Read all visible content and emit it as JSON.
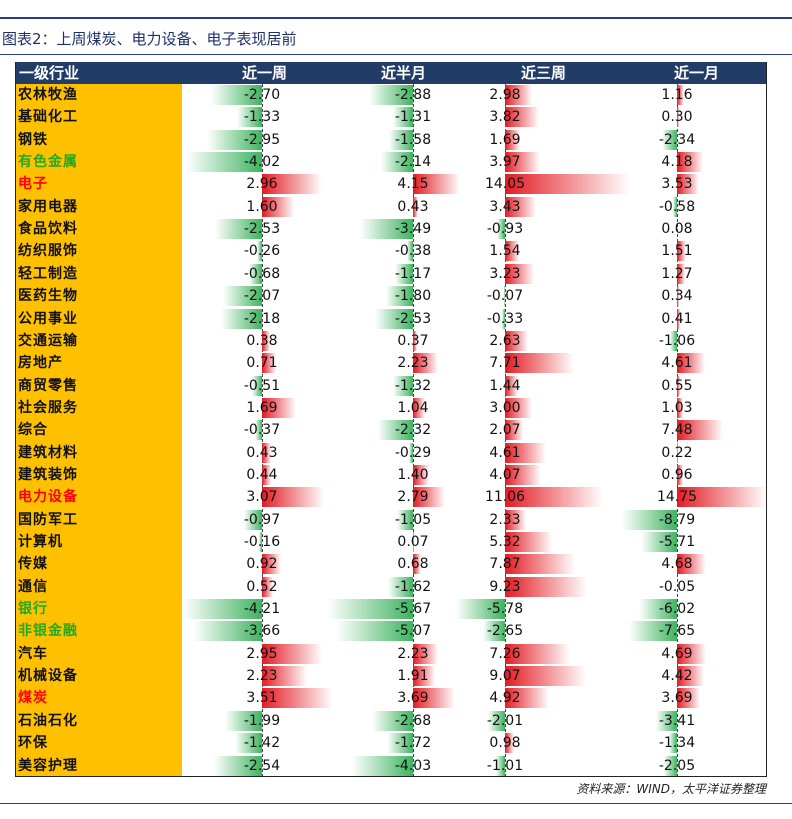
{
  "title": "图表2：上周煤炭、电力设备、电子表现居前",
  "source": "资料来源：WIND，太平洋证券整理",
  "colors": {
    "header": "#223c68",
    "industry_col": "#ffc000",
    "neg_bar": "#3db35f",
    "pos_bar": "#e31b23",
    "highlight_red": "#ff0000",
    "highlight_green": "#22aa22"
  },
  "chart_data": {
    "type": "table",
    "columns": [
      "一级行业",
      "近一周",
      "近半月",
      "近三周",
      "近一月"
    ],
    "rows": [
      {
        "name": "农林牧渔",
        "style": "normal",
        "values": [
          -2.7,
          -2.88,
          2.98,
          1.16
        ]
      },
      {
        "name": "基础化工",
        "style": "normal",
        "values": [
          -1.33,
          -1.31,
          3.82,
          0.3
        ]
      },
      {
        "name": "钢铁",
        "style": "normal",
        "values": [
          -2.95,
          -1.58,
          1.69,
          -2.34
        ]
      },
      {
        "name": "有色金属",
        "style": "green",
        "values": [
          -4.02,
          -2.14,
          3.97,
          4.18
        ]
      },
      {
        "name": "电子",
        "style": "red",
        "values": [
          2.96,
          4.15,
          14.05,
          3.53
        ]
      },
      {
        "name": "家用电器",
        "style": "normal",
        "values": [
          1.6,
          0.43,
          3.43,
          -0.58
        ]
      },
      {
        "name": "食品饮料",
        "style": "normal",
        "values": [
          -2.53,
          -3.49,
          -0.93,
          0.08
        ]
      },
      {
        "name": "纺织服饰",
        "style": "normal",
        "values": [
          -0.26,
          -0.38,
          1.54,
          1.51
        ]
      },
      {
        "name": "轻工制造",
        "style": "normal",
        "values": [
          -0.68,
          -1.17,
          3.23,
          1.27
        ]
      },
      {
        "name": "医药生物",
        "style": "normal",
        "values": [
          -2.07,
          -1.8,
          -0.07,
          0.34
        ]
      },
      {
        "name": "公用事业",
        "style": "normal",
        "values": [
          -2.18,
          -2.53,
          -0.33,
          0.41
        ]
      },
      {
        "name": "交通运输",
        "style": "normal",
        "values": [
          0.38,
          0.37,
          2.63,
          -1.06
        ]
      },
      {
        "name": "房地产",
        "style": "normal",
        "values": [
          0.71,
          2.23,
          7.71,
          4.61
        ]
      },
      {
        "name": "商贸零售",
        "style": "normal",
        "values": [
          -0.51,
          -1.32,
          1.44,
          0.55
        ]
      },
      {
        "name": "社会服务",
        "style": "normal",
        "values": [
          1.69,
          1.04,
          3.0,
          1.03
        ]
      },
      {
        "name": "综合",
        "style": "normal",
        "values": [
          -0.37,
          -2.32,
          2.07,
          7.48
        ]
      },
      {
        "name": "建筑材料",
        "style": "normal",
        "values": [
          0.43,
          -0.29,
          4.61,
          0.22
        ]
      },
      {
        "name": "建筑装饰",
        "style": "normal",
        "values": [
          0.44,
          1.4,
          4.07,
          0.96
        ]
      },
      {
        "name": "电力设备",
        "style": "red",
        "values": [
          3.07,
          2.79,
          11.06,
          14.75
        ]
      },
      {
        "name": "国防军工",
        "style": "normal",
        "values": [
          -0.97,
          -1.05,
          2.33,
          -8.79
        ]
      },
      {
        "name": "计算机",
        "style": "normal",
        "values": [
          -0.16,
          0.07,
          5.32,
          -5.71
        ]
      },
      {
        "name": "传媒",
        "style": "normal",
        "values": [
          0.92,
          0.68,
          7.87,
          4.68
        ]
      },
      {
        "name": "通信",
        "style": "normal",
        "values": [
          0.52,
          -1.62,
          9.23,
          -0.05
        ]
      },
      {
        "name": "银行",
        "style": "green",
        "values": [
          -4.21,
          -5.67,
          -5.78,
          -6.02
        ]
      },
      {
        "name": "非银金融",
        "style": "green",
        "values": [
          -3.66,
          -5.07,
          -2.65,
          -7.65
        ]
      },
      {
        "name": "汽车",
        "style": "normal",
        "values": [
          2.95,
          2.23,
          7.26,
          4.69
        ]
      },
      {
        "name": "机械设备",
        "style": "normal",
        "values": [
          2.23,
          1.91,
          9.07,
          4.42
        ]
      },
      {
        "name": "煤炭",
        "style": "red",
        "values": [
          3.51,
          3.69,
          4.92,
          3.69
        ]
      },
      {
        "name": "石油石化",
        "style": "normal",
        "values": [
          -1.99,
          -2.68,
          -2.01,
          -3.41
        ]
      },
      {
        "name": "环保",
        "style": "normal",
        "values": [
          -1.42,
          -1.72,
          0.98,
          -1.34
        ]
      },
      {
        "name": "美容护理",
        "style": "normal",
        "values": [
          -2.54,
          -4.03,
          -1.01,
          -2.05
        ]
      }
    ]
  }
}
